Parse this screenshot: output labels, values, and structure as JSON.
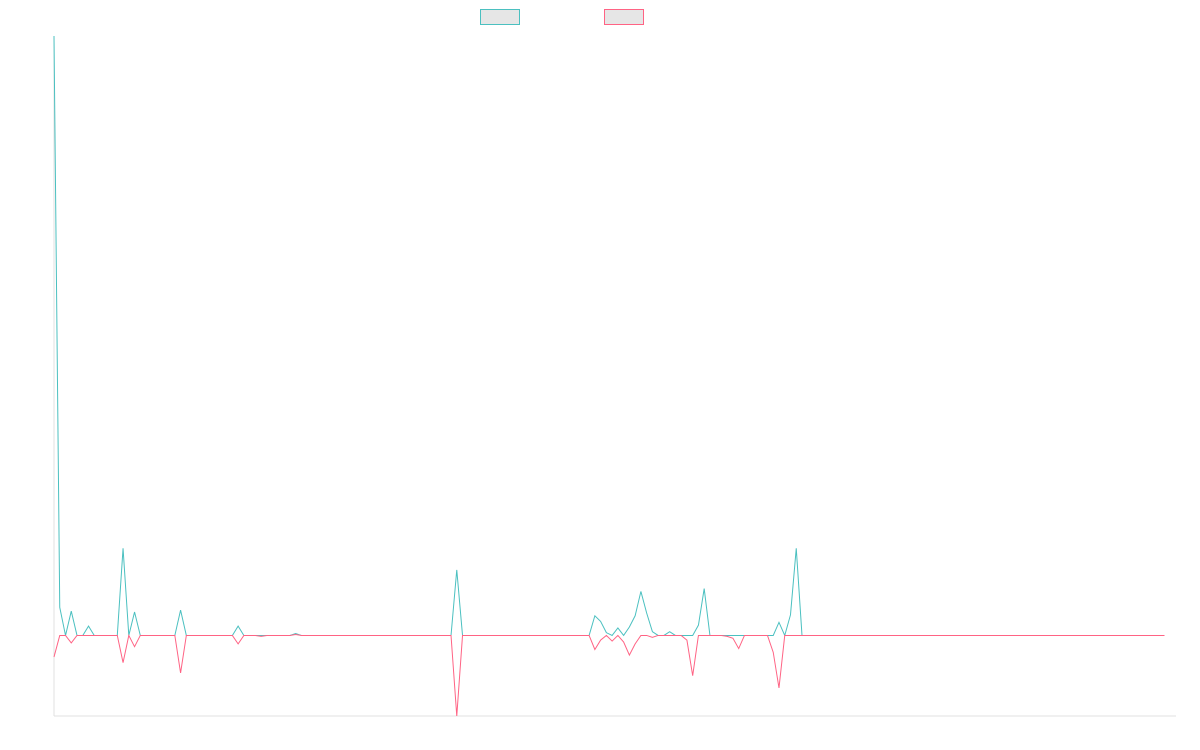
{
  "colors": {
    "series_a": "#4bc0c0",
    "series_b": "#ff6384",
    "legend_fill": "#e6e6e6",
    "axis": "#e0e0e0"
  },
  "legend": {
    "entries": [
      "",
      ""
    ]
  },
  "chart_data": {
    "type": "line",
    "title": "",
    "xlabel": "",
    "ylabel": "",
    "grid": false,
    "legend_position": "top",
    "x_count": 196,
    "ylim": [
      -0.86,
      6.4
    ],
    "series": [
      {
        "color": "#4bc0c0",
        "values": [
          6.4,
          0.3,
          0,
          0.26,
          0,
          0,
          0.1,
          0,
          0,
          0,
          0,
          0,
          0.93,
          0,
          0.25,
          0,
          0,
          0,
          0,
          0,
          0,
          0,
          0.27,
          0,
          0,
          0,
          0,
          0,
          0,
          0,
          0,
          0,
          0.1,
          0,
          0,
          0,
          0,
          0,
          0,
          0,
          0,
          0,
          0.02,
          0,
          0,
          0,
          0,
          0,
          0,
          0,
          0,
          0,
          0,
          0,
          0,
          0,
          0,
          0,
          0,
          0,
          0,
          0,
          0,
          0,
          0,
          0,
          0,
          0,
          0,
          0,
          0.7,
          0,
          0,
          0,
          0,
          0,
          0,
          0,
          0,
          0,
          0,
          0,
          0,
          0,
          0,
          0,
          0,
          0,
          0,
          0,
          0,
          0,
          0,
          0,
          0.21,
          0.15,
          0.03,
          0,
          0.08,
          0,
          0.09,
          0.21,
          0.47,
          0.24,
          0.04,
          0,
          0,
          0.04,
          0,
          0,
          0,
          0,
          0.11,
          0.5,
          0,
          0,
          0,
          0,
          0,
          0,
          0,
          0,
          0,
          0,
          0,
          0,
          0.14,
          0,
          0.22,
          0.93,
          0,
          0,
          0,
          0,
          0,
          0,
          0,
          0,
          0,
          0,
          0,
          0,
          0,
          0,
          0,
          0,
          0,
          0,
          0,
          0,
          0,
          0,
          0,
          0,
          0,
          0,
          0,
          0,
          0,
          0,
          0,
          0,
          0,
          0,
          0,
          0,
          0,
          0,
          0,
          0,
          0,
          0,
          0,
          0,
          0,
          0,
          0,
          0,
          0,
          0,
          0,
          0,
          0,
          0,
          0,
          0,
          0,
          0,
          0,
          0,
          0,
          0,
          0,
          0
        ]
      },
      {
        "color": "#ff6384",
        "values": [
          -0.23,
          0,
          0,
          -0.08,
          0,
          0,
          0,
          0,
          0,
          0,
          0,
          0,
          -0.29,
          0,
          -0.12,
          0,
          0,
          0,
          0,
          0,
          0,
          0,
          -0.4,
          0,
          0,
          0,
          0,
          0,
          0,
          0,
          0,
          0,
          -0.09,
          0,
          0,
          0,
          -0.01,
          0,
          0,
          0,
          0,
          0,
          0.01,
          0,
          0,
          0,
          0,
          0,
          0,
          0,
          0,
          0,
          0,
          0,
          0,
          0,
          0,
          0,
          0,
          0,
          0,
          0,
          0,
          0,
          0,
          0,
          0,
          0,
          0,
          0,
          -0.86,
          0,
          0,
          0,
          0,
          0,
          0,
          0,
          0,
          0,
          0,
          0,
          0,
          0,
          0,
          0,
          0,
          0,
          0,
          0,
          0,
          0,
          0,
          0,
          -0.15,
          -0.05,
          0,
          -0.06,
          0,
          -0.07,
          -0.21,
          -0.09,
          0,
          0,
          -0.02,
          0,
          0,
          0,
          0,
          0,
          -0.05,
          -0.43,
          0,
          0,
          0,
          0,
          0,
          -0.01,
          -0.03,
          -0.14,
          0,
          0,
          0,
          0,
          0,
          -0.18,
          -0.56,
          0,
          0,
          0,
          0,
          0,
          0,
          0,
          0,
          0,
          0,
          0,
          0,
          0,
          0,
          0,
          0,
          0,
          0,
          0,
          0,
          0,
          0,
          0,
          0,
          0,
          0,
          0,
          0,
          0,
          0,
          0,
          0,
          0,
          0,
          0,
          0,
          0,
          0,
          0,
          0,
          0,
          0,
          0,
          0,
          0,
          0,
          0,
          0,
          0,
          0,
          0,
          0,
          0,
          0,
          0,
          0,
          0,
          0,
          0,
          0,
          0,
          0,
          0,
          0,
          0,
          0,
          0
        ]
      }
    ]
  }
}
